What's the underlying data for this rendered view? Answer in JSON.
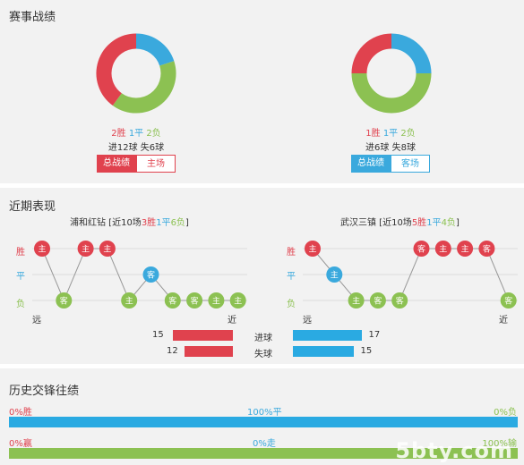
{
  "colors": {
    "win": "#e0424e",
    "draw": "#3aa9dd",
    "loss": "#8cc152"
  },
  "summary": {
    "title": "赛事战绩",
    "home": {
      "donut": {
        "win": 2,
        "draw": 1,
        "loss": 2
      },
      "w": "2胜",
      "d": "1平",
      "l": "2负",
      "goals": "进12球 失6球",
      "tab_active": "总战绩",
      "tab_other": "主场"
    },
    "away": {
      "donut": {
        "win": 1,
        "draw": 1,
        "loss": 2
      },
      "w": "1胜",
      "d": "1平",
      "l": "2负",
      "goals": "进6球 失8球",
      "tab_active": "总战绩",
      "tab_other": "客场"
    }
  },
  "recent": {
    "title": "近期表现",
    "axis": {
      "win": "胜",
      "draw": "平",
      "loss": "负",
      "far": "远",
      "near": "近"
    },
    "home": {
      "name": "浦和红钻",
      "prefix": " [近10场",
      "w": "3胜",
      "d": "1平",
      "l": "6负",
      "suffix": "]",
      "results": [
        "W",
        "L",
        "W",
        "W",
        "L",
        "D",
        "L",
        "L",
        "L",
        "L"
      ],
      "venues": [
        "主",
        "客",
        "主",
        "主",
        "主",
        "客",
        "客",
        "客",
        "主",
        "主"
      ]
    },
    "away": {
      "name": "武汉三镇",
      "prefix": " [近10场",
      "w": "5胜",
      "d": "1平",
      "l": "4负",
      "suffix": "]",
      "results": [
        "W",
        "D",
        "L",
        "L",
        "L",
        "W",
        "W",
        "W",
        "W",
        "L"
      ],
      "venues": [
        "主",
        "主",
        "主",
        "客",
        "客",
        "客",
        "主",
        "主",
        "客",
        "客"
      ]
    },
    "scored": {
      "label": "进球",
      "home": "15",
      "away": "17",
      "home_val": 15,
      "away_val": 17
    },
    "conceded": {
      "label": "失球",
      "home": "12",
      "away": "15",
      "home_val": 12,
      "away_val": 15
    }
  },
  "h2h": {
    "title": "历史交锋往绩",
    "row1": {
      "left": "0%胜",
      "mid": "100%平",
      "right": "0%负"
    },
    "row2": {
      "left": "0%赢",
      "mid": "0%走",
      "right": "100%输"
    }
  },
  "watermark": "5bty.com"
}
